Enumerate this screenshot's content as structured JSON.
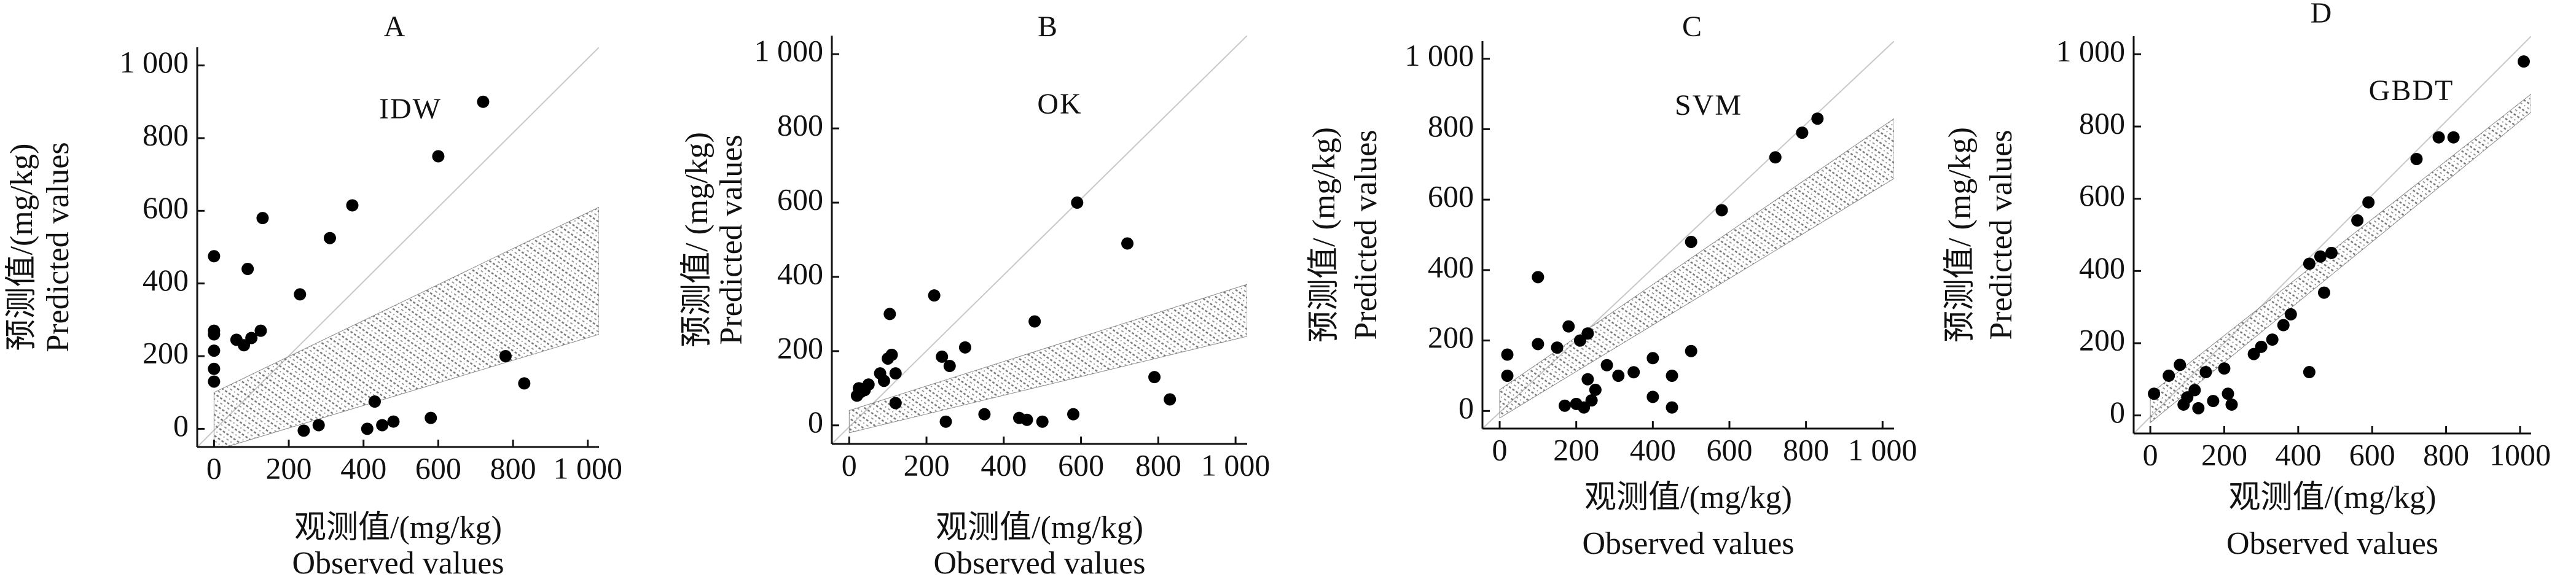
{
  "chart_data": [
    {
      "type": "scatter",
      "title": "A",
      "annotation": "IDW",
      "y_label": [
        "预测值/(mg/kg)",
        "Predicted values"
      ],
      "x_label": [
        "观测值/(mg/kg)",
        "Observed values"
      ],
      "x": [
        0,
        0,
        0,
        0,
        0,
        0,
        60,
        80,
        100,
        90,
        125,
        130,
        230,
        310,
        370,
        600,
        720,
        780,
        830,
        430,
        450,
        480,
        580,
        410,
        280,
        240
      ],
      "y": [
        475,
        270,
        260,
        215,
        165,
        130,
        245,
        230,
        250,
        440,
        270,
        580,
        370,
        525,
        615,
        750,
        900,
        200,
        125,
        75,
        10,
        20,
        30,
        0,
        10,
        -5
      ],
      "color": "#000000",
      "band": {
        "x": [
          0,
          1030
        ],
        "lower": [
          -60,
          260
        ],
        "upper": [
          100,
          610
        ],
        "color": "#8a8a8a"
      },
      "xlim": [
        -45,
        1030
      ],
      "ylim": [
        -50,
        1050
      ],
      "xticks": [
        0,
        200,
        400,
        600,
        800,
        {
          "value": 1000,
          "label": "1 000"
        }
      ],
      "yticks": [
        0,
        200,
        400,
        600,
        800,
        {
          "value": 1000,
          "label": "1 000"
        }
      ]
    },
    {
      "type": "scatter",
      "title": "B",
      "annotation": "OK",
      "y_label": [
        "预测值/ (mg/kg)",
        "Predicted values"
      ],
      "x_label": [
        "观测值/(mg/kg)",
        "Observed values"
      ],
      "x": [
        20,
        25,
        30,
        40,
        50,
        80,
        90,
        100,
        105,
        110,
        120,
        120,
        220,
        240,
        260,
        300,
        350,
        440,
        460,
        480,
        500,
        580,
        590,
        720,
        790,
        830,
        250
      ],
      "y": [
        80,
        100,
        90,
        95,
        110,
        140,
        120,
        180,
        300,
        190,
        140,
        60,
        350,
        185,
        160,
        210,
        30,
        20,
        15,
        280,
        10,
        30,
        600,
        490,
        130,
        70,
        10
      ],
      "color": "#000000",
      "band": {
        "x": [
          0,
          1030
        ],
        "lower": [
          -20,
          240
        ],
        "upper": [
          40,
          380
        ],
        "color": "#8a8a8a"
      },
      "xlim": [
        -45,
        1030
      ],
      "ylim": [
        -50,
        1050
      ],
      "xticks": [
        0,
        200,
        400,
        600,
        800,
        {
          "value": 1000,
          "label": "1 000"
        }
      ],
      "yticks": [
        0,
        200,
        400,
        600,
        800,
        {
          "value": 1000,
          "label": "1 000"
        }
      ]
    },
    {
      "type": "scatter",
      "title": "C",
      "annotation": "SVM",
      "y_label": [
        "预测值/ (mg/kg)",
        "Predicted values"
      ],
      "x_label": [
        "观测值/(mg/kg)",
        "Observed values"
      ],
      "x": [
        20,
        20,
        100,
        100,
        150,
        180,
        210,
        230,
        230,
        240,
        250,
        280,
        310,
        350,
        400,
        400,
        450,
        450,
        500,
        500,
        580,
        720,
        790,
        830,
        200,
        220,
        170
      ],
      "y": [
        160,
        100,
        380,
        190,
        180,
        240,
        200,
        220,
        90,
        30,
        60,
        130,
        100,
        110,
        150,
        40,
        100,
        10,
        170,
        480,
        570,
        720,
        790,
        830,
        20,
        10,
        15
      ],
      "color": "#000000",
      "band": {
        "x": [
          0,
          1030
        ],
        "lower": [
          -20,
          660
        ],
        "upper": [
          60,
          830
        ],
        "color": "#8a8a8a"
      },
      "xlim": [
        -45,
        1030
      ],
      "ylim": [
        -50,
        1050
      ],
      "xticks": [
        0,
        200,
        400,
        600,
        800,
        {
          "value": 1000,
          "label": "1 000"
        }
      ],
      "yticks": [
        0,
        200,
        400,
        600,
        800,
        {
          "value": 1000,
          "label": "1 000"
        }
      ]
    },
    {
      "type": "scatter",
      "title": "D",
      "annotation": "GBDT",
      "y_label": [
        "预测值/ (mg/kg)",
        "Predicted values"
      ],
      "x_label": [
        "观测值/(mg/kg)",
        "Observed values"
      ],
      "x": [
        10,
        50,
        80,
        90,
        100,
        120,
        130,
        150,
        170,
        200,
        210,
        220,
        280,
        300,
        330,
        360,
        380,
        430,
        430,
        460,
        470,
        490,
        560,
        590,
        720,
        780,
        820,
        1010
      ],
      "y": [
        60,
        110,
        140,
        30,
        50,
        70,
        20,
        120,
        40,
        130,
        60,
        30,
        170,
        190,
        210,
        250,
        280,
        120,
        420,
        440,
        340,
        450,
        540,
        590,
        710,
        770,
        770,
        980
      ],
      "color": "#000000",
      "band": {
        "x": [
          0,
          1030
        ],
        "lower": [
          -20,
          840
        ],
        "upper": [
          60,
          890
        ],
        "color": "#8a8a8a"
      },
      "xlim": [
        -45,
        1030
      ],
      "ylim": [
        -50,
        1050
      ],
      "xticks": [
        0,
        200,
        400,
        600,
        800,
        1000
      ],
      "yticks": [
        0,
        200,
        400,
        600,
        800,
        {
          "value": 1000,
          "label": "1 000"
        }
      ]
    }
  ]
}
